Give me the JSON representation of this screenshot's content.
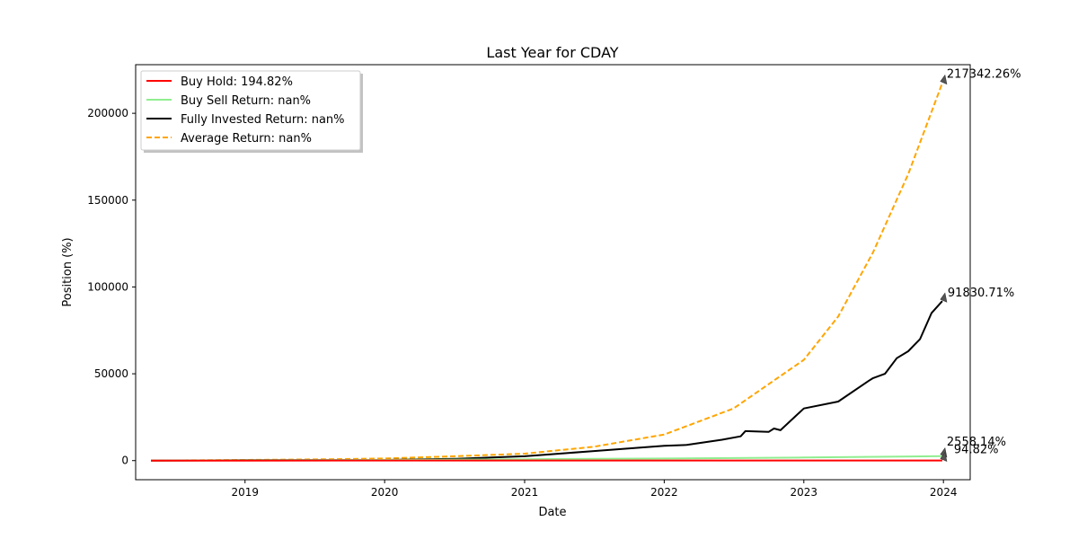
{
  "chart_data": {
    "type": "line",
    "title": "Last Year for CDAY",
    "xlabel": "Date",
    "ylabel": "Position (%)",
    "xlim": [
      "2018-03-21",
      "2024-03-11"
    ],
    "ylim": [
      -11000,
      228000
    ],
    "x_ticks": [
      "2019",
      "2020",
      "2021",
      "2022",
      "2023",
      "2024"
    ],
    "y_ticks": [
      0,
      50000,
      100000,
      150000,
      200000
    ],
    "grid": false,
    "legend_position": "top-left",
    "legend_labels": [
      "Buy Hold: 194.82%",
      "Buy Sell Return: nan%",
      "Fully Invested Return: nan%",
      "Average Return: nan%"
    ],
    "series": [
      {
        "name": "Average Return",
        "color": "#ffa500",
        "style": "dashed",
        "end_label": "217342.26%",
        "x": [
          "2018-04-30",
          "2019-01-01",
          "2019-07-01",
          "2020-01-01",
          "2020-07-01",
          "2021-01-01",
          "2021-07-01",
          "2022-01-01",
          "2022-07-01",
          "2023-01-01",
          "2023-04-01",
          "2023-07-01",
          "2023-10-01",
          "2023-12-29"
        ],
        "y": [
          0,
          400,
          700,
          1200,
          2500,
          4000,
          8000,
          15000,
          30000,
          58000,
          83000,
          120000,
          165000,
          217342
        ]
      },
      {
        "name": "Fully Invested Return",
        "color": "#000000",
        "style": "solid",
        "end_label": "91830.71%",
        "x": [
          "2018-04-30",
          "2019-01-01",
          "2020-01-01",
          "2020-07-01",
          "2021-01-01",
          "2021-07-01",
          "2022-01-01",
          "2022-03-01",
          "2022-06-01",
          "2022-07-20",
          "2022-08-01",
          "2022-10-01",
          "2022-10-15",
          "2022-11-01",
          "2023-01-01",
          "2023-04-01",
          "2023-06-20",
          "2023-07-01",
          "2023-08-01",
          "2023-09-01",
          "2023-10-01",
          "2023-11-01",
          "2023-12-01",
          "2023-12-29"
        ],
        "y": [
          0,
          200,
          400,
          1000,
          2500,
          5500,
          8500,
          9000,
          12000,
          14000,
          17000,
          16500,
          18500,
          17500,
          30000,
          34000,
          46000,
          47500,
          50000,
          59000,
          63000,
          70000,
          85000,
          91830
        ]
      },
      {
        "name": "Buy Sell Return",
        "color": "#90ee90",
        "style": "solid",
        "end_label": "2558.14%",
        "x": [
          "2018-04-30",
          "2019-01-01",
          "2020-01-01",
          "2021-01-01",
          "2022-01-01",
          "2023-01-01",
          "2023-12-29"
        ],
        "y": [
          0,
          150,
          400,
          800,
          1200,
          1800,
          2558
        ]
      },
      {
        "name": "Buy Hold",
        "color": "#ff0000",
        "style": "solid",
        "end_label": "94.82%",
        "x": [
          "2018-04-30",
          "2019-01-01",
          "2020-01-01",
          "2021-01-01",
          "2022-01-01",
          "2023-01-01",
          "2023-12-29"
        ],
        "y": [
          0,
          30,
          60,
          60,
          90,
          80,
          95
        ]
      }
    ]
  }
}
